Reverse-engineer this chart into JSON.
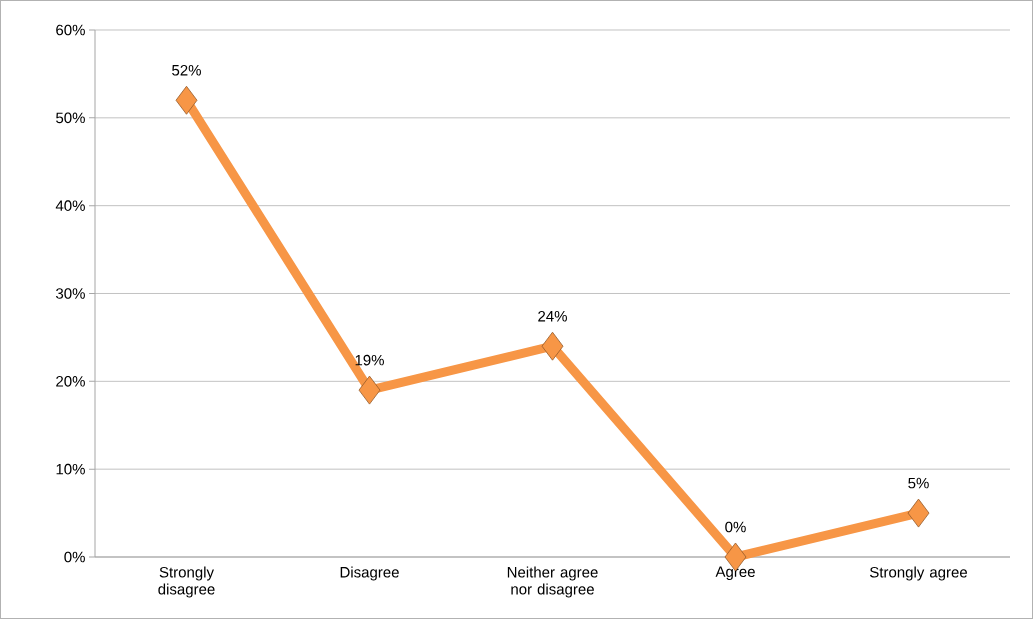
{
  "chart_data": {
    "type": "line",
    "categories": [
      "Strongly disagree",
      "Disagree",
      "Neither agree nor disagree",
      "Agree",
      "Strongly agree"
    ],
    "values": [
      52,
      19,
      24,
      0,
      5
    ],
    "value_labels": [
      "52%",
      "19%",
      "24%",
      "0%",
      "5%"
    ],
    "color": "#f79646",
    "marker": "diamond",
    "ylim": [
      0,
      60
    ],
    "yticks": [
      {
        "value": 0,
        "label": "0%"
      },
      {
        "value": 10,
        "label": "10%"
      },
      {
        "value": 20,
        "label": "20%"
      },
      {
        "value": 30,
        "label": "30%"
      },
      {
        "value": 40,
        "label": "40%"
      },
      {
        "value": 50,
        "label": "50%"
      },
      {
        "value": 60,
        "label": "60%"
      }
    ],
    "grid": "y"
  }
}
